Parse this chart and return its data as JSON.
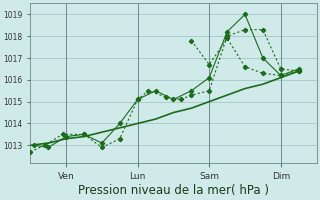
{
  "background_color": "#d0eaea",
  "grid_color": "#9bbfbf",
  "line_color": "#1a6b1a",
  "ylim": [
    1012.2,
    1019.5
  ],
  "yticks": [
    1013,
    1014,
    1015,
    1016,
    1017,
    1018,
    1019
  ],
  "xlabel": "Pression niveau de la mer( hPa )",
  "xlabel_fontsize": 8.5,
  "day_labels": [
    "Ven",
    "Lun",
    "Sam",
    "Dim"
  ],
  "day_positions": [
    1,
    3,
    5,
    7
  ],
  "xlim": [
    0.0,
    8.0
  ],
  "series_smooth": {
    "x": [
      0.0,
      0.5,
      1.0,
      1.5,
      2.0,
      2.5,
      3.0,
      3.5,
      4.0,
      4.5,
      5.0,
      5.5,
      6.0,
      6.5,
      7.0,
      7.5
    ],
    "y": [
      1013.0,
      1013.1,
      1013.3,
      1013.4,
      1013.6,
      1013.8,
      1014.0,
      1014.2,
      1014.5,
      1014.7,
      1015.0,
      1015.3,
      1015.6,
      1015.8,
      1016.1,
      1016.4
    ]
  },
  "series_dotted1": {
    "x": [
      0.0,
      0.4,
      0.9,
      1.5,
      2.0,
      2.5,
      3.0,
      3.3,
      3.8,
      4.2,
      4.5,
      5.0,
      5.5,
      6.0,
      6.5,
      7.0,
      7.5
    ],
    "y": [
      1012.7,
      1013.0,
      1013.5,
      1013.5,
      1012.9,
      1013.3,
      1015.1,
      1015.5,
      1015.2,
      1015.1,
      1015.3,
      1015.5,
      1018.0,
      1018.3,
      1018.3,
      1016.5,
      1016.4
    ]
  },
  "series_solid1": {
    "x": [
      0.1,
      0.5,
      1.0,
      1.5,
      2.0,
      2.5,
      3.0,
      3.5,
      4.0,
      4.5,
      5.0,
      5.5,
      6.0,
      6.5,
      7.0,
      7.5
    ],
    "y": [
      1013.0,
      1012.9,
      1013.4,
      1013.5,
      1013.1,
      1014.0,
      1015.1,
      1015.5,
      1015.1,
      1015.5,
      1016.1,
      1018.2,
      1019.0,
      1017.0,
      1016.2,
      1016.5
    ]
  },
  "series_dotted2": {
    "x": [
      4.5,
      5.0,
      5.5,
      6.0,
      6.5,
      7.0,
      7.5
    ],
    "y": [
      1017.8,
      1016.7,
      1017.9,
      1016.6,
      1016.3,
      1016.2,
      1016.4
    ]
  }
}
